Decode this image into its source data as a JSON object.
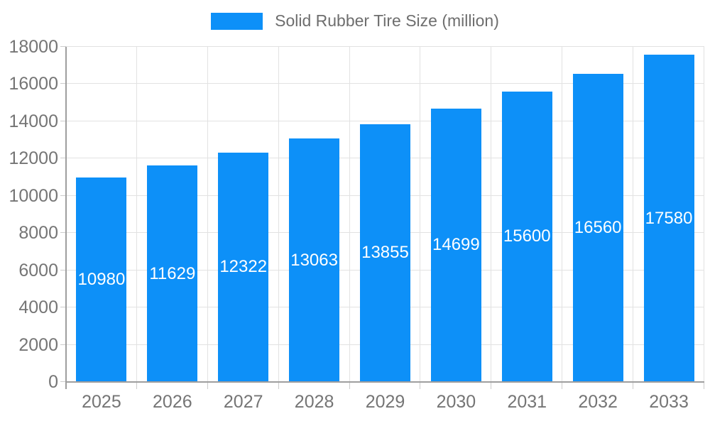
{
  "chart_data": {
    "type": "bar",
    "title": "Solid Rubber Tire Size (million)",
    "categories": [
      "2025",
      "2026",
      "2027",
      "2028",
      "2029",
      "2030",
      "2031",
      "2032",
      "2033"
    ],
    "values": [
      10980,
      11629,
      12322,
      13063,
      13855,
      14699,
      15600,
      16560,
      17580
    ],
    "xlabel": "",
    "ylabel": "",
    "ylim": [
      0,
      18000
    ],
    "ytick_step": 2000,
    "ytick_labels": [
      "0",
      "2000",
      "4000",
      "6000",
      "8000",
      "10000",
      "12000",
      "14000",
      "16000",
      "18000"
    ],
    "grid": true,
    "legend_position": "top-center",
    "value_label_position": "inside-middle",
    "colors": {
      "bar": "#0d90f8",
      "value_label_text": "#ffffff",
      "axis_text": "#757575",
      "legend_text": "#6e6e6e",
      "axis_line": "#9e9e9e",
      "gridline": "#e2e2e2",
      "tick": "#cccccc",
      "background": "#ffffff"
    }
  }
}
